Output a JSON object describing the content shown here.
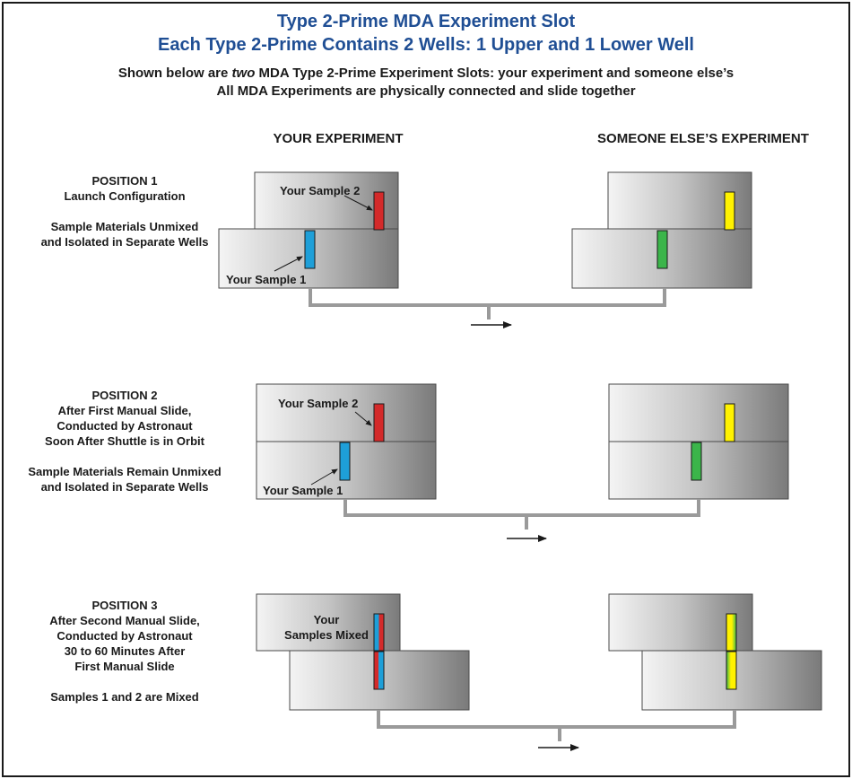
{
  "header": {
    "title_line1": "Type 2-Prime MDA Experiment Slot",
    "title_line2": "Each Type 2-Prime Contains 2 Wells: 1 Upper and 1 Lower Well",
    "subtitle_line1_pre": "Shown below are ",
    "subtitle_line1_em": "two",
    "subtitle_line1_post": " MDA Type 2-Prime Experiment Slots: your experiment and someone else’s",
    "subtitle_line2": "All MDA Experiments are physically connected and slide together"
  },
  "columns": {
    "yours": "YOUR EXPERIMENT",
    "others": "SOMEONE ELSE’S EXPERIMENT"
  },
  "positions": [
    {
      "lines": [
        "POSITION 1",
        "Launch Configuration",
        "",
        "Sample Materials Unmixed",
        "and Isolated in Separate Wells"
      ],
      "annot_sample2": "Your Sample 2",
      "annot_sample1": "Your Sample 1"
    },
    {
      "lines": [
        "POSITION 2",
        "After First Manual Slide,",
        "Conducted by Astronaut",
        "Soon After Shuttle is in Orbit",
        "",
        "Sample Materials Remain Unmixed",
        "and Isolated in Separate Wells"
      ],
      "annot_sample2": "Your Sample 2",
      "annot_sample1": "Your Sample 1"
    },
    {
      "lines": [
        "POSITION 3",
        "After Second Manual Slide,",
        "Conducted by Astronaut",
        "30 to 60 Minutes After",
        "First Manual Slide",
        "",
        "Samples 1 and 2 are Mixed"
      ],
      "annot_mixed_line1": "Your",
      "annot_mixed_line2": "Samples Mixed"
    }
  ],
  "colors": {
    "title_blue": "#1f4e94",
    "sample1_blue": "#1e9fd8",
    "sample2_red": "#d42a2a",
    "other_upper_yellow": "#fff200",
    "other_lower_green": "#3bb54a",
    "connector_gray": "#9a9a9a",
    "slab_light": "#f4f4f4",
    "slab_dark": "#7a7a7a"
  }
}
